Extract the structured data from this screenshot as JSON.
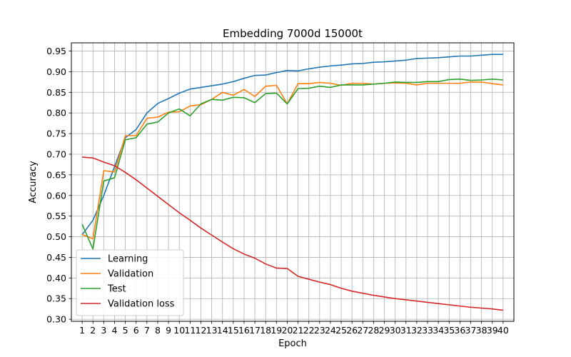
{
  "chart_data": {
    "type": "line",
    "title": "Embedding 7000d 15000t",
    "xlabel": "Epoch",
    "ylabel": "Accuracy",
    "x": [
      1,
      2,
      3,
      4,
      5,
      6,
      7,
      8,
      9,
      10,
      11,
      12,
      13,
      14,
      15,
      16,
      17,
      18,
      19,
      20,
      21,
      22,
      23,
      24,
      25,
      26,
      27,
      28,
      29,
      30,
      31,
      32,
      33,
      34,
      35,
      36,
      37,
      38,
      39,
      40
    ],
    "xlim": [
      0,
      41
    ],
    "ylim": [
      0.295,
      0.97
    ],
    "yticks": [
      0.3,
      0.35,
      0.4,
      0.45,
      0.5,
      0.55,
      0.6,
      0.65,
      0.7,
      0.75,
      0.8,
      0.85,
      0.9,
      0.95
    ],
    "ytick_labels": [
      "0.30",
      "0.35",
      "0.40",
      "0.45",
      "0.50",
      "0.55",
      "0.60",
      "0.65",
      "0.70",
      "0.75",
      "0.80",
      "0.85",
      "0.90",
      "0.95"
    ],
    "grid": true,
    "legend_position": "lower-left",
    "series": [
      {
        "name": "Learning",
        "color": "#1f77b4",
        "values": [
          0.505,
          0.54,
          0.6,
          0.67,
          0.74,
          0.76,
          0.8,
          0.823,
          0.835,
          0.848,
          0.858,
          0.862,
          0.866,
          0.87,
          0.876,
          0.884,
          0.891,
          0.892,
          0.898,
          0.903,
          0.902,
          0.907,
          0.911,
          0.914,
          0.916,
          0.919,
          0.92,
          0.923,
          0.924,
          0.926,
          0.928,
          0.932,
          0.933,
          0.934,
          0.936,
          0.938,
          0.938,
          0.94,
          0.942,
          0.942
        ]
      },
      {
        "name": "Validation",
        "color": "#ff7f0e",
        "values": [
          0.505,
          0.495,
          0.66,
          0.657,
          0.745,
          0.745,
          0.787,
          0.79,
          0.802,
          0.803,
          0.817,
          0.82,
          0.833,
          0.85,
          0.843,
          0.857,
          0.84,
          0.865,
          0.867,
          0.822,
          0.871,
          0.871,
          0.874,
          0.872,
          0.867,
          0.872,
          0.872,
          0.87,
          0.872,
          0.873,
          0.872,
          0.868,
          0.872,
          0.872,
          0.872,
          0.872,
          0.875,
          0.875,
          0.871,
          0.868
        ]
      },
      {
        "name": "Test",
        "color": "#2ca02c",
        "values": [
          0.53,
          0.47,
          0.635,
          0.643,
          0.735,
          0.74,
          0.773,
          0.778,
          0.8,
          0.81,
          0.793,
          0.822,
          0.833,
          0.831,
          0.838,
          0.837,
          0.825,
          0.847,
          0.848,
          0.822,
          0.859,
          0.86,
          0.865,
          0.862,
          0.868,
          0.868,
          0.868,
          0.87,
          0.872,
          0.875,
          0.874,
          0.874,
          0.876,
          0.876,
          0.881,
          0.882,
          0.879,
          0.88,
          0.882,
          0.88
        ]
      },
      {
        "name": "Validation loss",
        "color": "#d62728",
        "values": [
          0.693,
          0.691,
          0.681,
          0.672,
          0.656,
          0.638,
          0.618,
          0.598,
          0.578,
          0.558,
          0.54,
          0.521,
          0.504,
          0.487,
          0.471,
          0.458,
          0.448,
          0.434,
          0.424,
          0.423,
          0.404,
          0.397,
          0.39,
          0.384,
          0.375,
          0.368,
          0.363,
          0.358,
          0.354,
          0.35,
          0.347,
          0.344,
          0.341,
          0.338,
          0.335,
          0.332,
          0.329,
          0.327,
          0.325,
          0.322
        ]
      }
    ]
  }
}
